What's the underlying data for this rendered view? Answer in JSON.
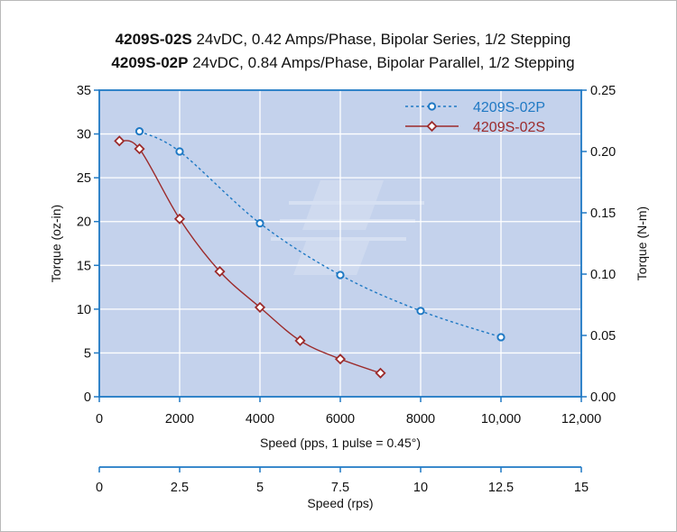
{
  "chart_data": {
    "type": "line",
    "title_lines": [
      {
        "model": "4209S-02S",
        "desc": " 24vDC, 0.42 Amps/Phase, Bipolar Series, 1/2 Stepping"
      },
      {
        "model": "4209S-02P",
        "desc": " 24vDC, 0.84 Amps/Phase, Bipolar Parallel, 1/2 Stepping"
      }
    ],
    "xlabel": "Speed (pps, 1 pulse = 0.45°)",
    "ylabel_left": "Torque (oz-in)",
    "ylabel_right": "Torque (N-m)",
    "x2label": "Speed (rps)",
    "xlim": [
      0,
      12000
    ],
    "ylim_left": [
      0,
      35
    ],
    "ylim_right": [
      0,
      0.25
    ],
    "x2lim": [
      0,
      15
    ],
    "x_ticks": [
      "0",
      "2000",
      "4000",
      "6000",
      "8000",
      "10,000",
      "12,000"
    ],
    "y_left_ticks": [
      "0",
      "5",
      "10",
      "15",
      "20",
      "25",
      "30",
      "35"
    ],
    "y_right_ticks": [
      "0.00",
      "0.05",
      "0.10",
      "0.15",
      "0.20",
      "0.25"
    ],
    "x2_ticks": [
      "0",
      "2.5",
      "5",
      "7.5",
      "10",
      "12.5",
      "15"
    ],
    "grid": true,
    "legend_position": "top-right",
    "background_color": "#c4d2ec",
    "series": [
      {
        "name": "4209S-02P",
        "color": "#1f79c4",
        "marker": "circle",
        "line_style": "dashed",
        "x": [
          1000,
          2000,
          4000,
          6000,
          8000,
          10000
        ],
        "y": [
          30.3,
          28.0,
          19.8,
          13.9,
          9.8,
          6.8
        ]
      },
      {
        "name": "4209S-02S",
        "color": "#9c2b2b",
        "marker": "diamond",
        "line_style": "solid",
        "x": [
          500,
          1000,
          2000,
          3000,
          4000,
          5000,
          6000,
          7000
        ],
        "y": [
          29.2,
          28.3,
          20.3,
          14.3,
          10.2,
          6.4,
          4.3,
          2.7
        ]
      }
    ]
  }
}
